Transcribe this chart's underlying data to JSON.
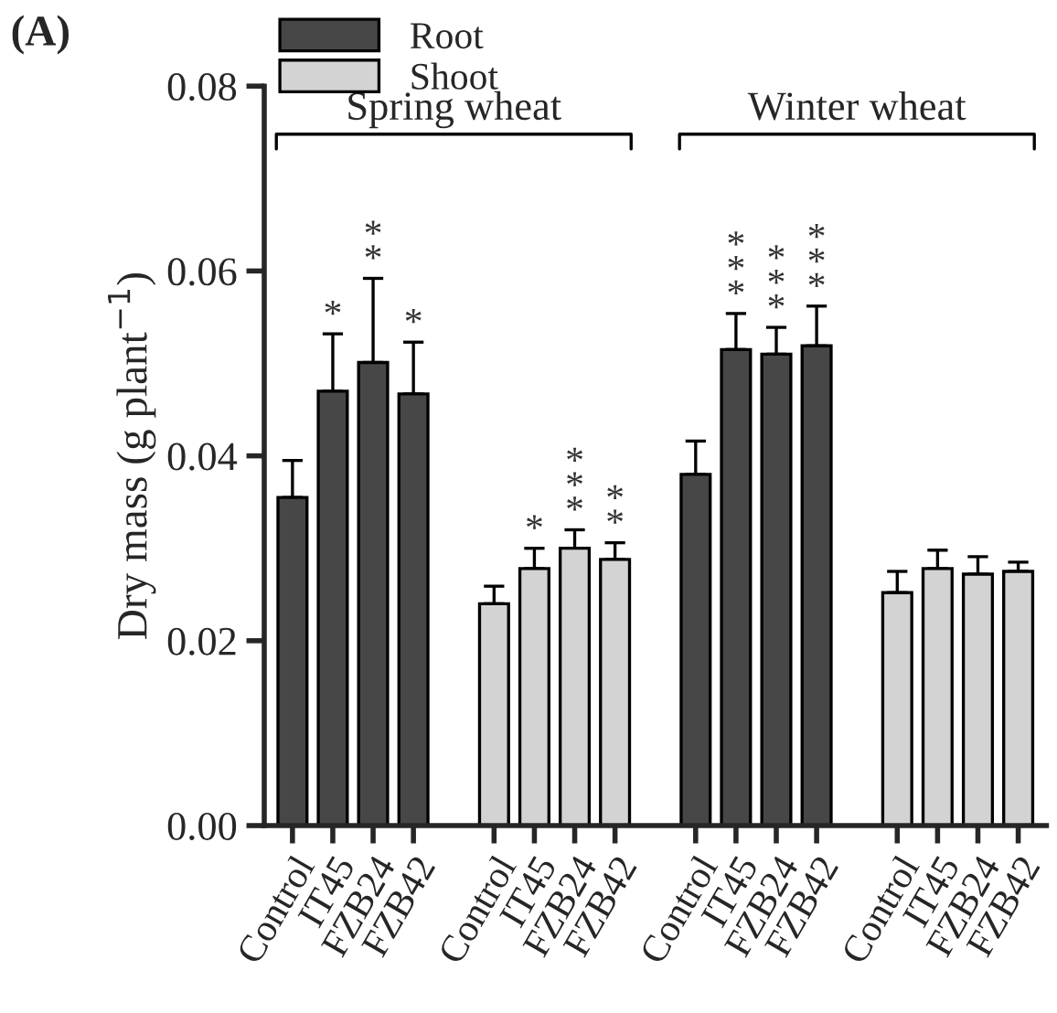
{
  "chart_data": {
    "type": "bar",
    "title": "(A)",
    "ylabel": "Dry mass (g plant$^{−1}$)",
    "categories": [
      "Control",
      "IT45",
      "FZB24",
      "FZB42",
      null,
      "Control",
      "IT45",
      "FZB24",
      "FZB42",
      null,
      "Control",
      "IT45",
      "FZB24",
      "FZB42",
      null,
      "Control",
      "IT45",
      "FZB24",
      "FZB42"
    ],
    "series": [
      {
        "name": "Root",
        "color": "#474747",
        "values": [
          0.0355,
          0.047,
          0.0501,
          0.0467,
          null,
          null,
          null,
          null,
          null,
          null,
          0.038,
          0.0515,
          0.051,
          0.0519,
          null,
          null,
          null,
          null,
          null
        ],
        "errors": [
          0.004,
          0.0062,
          0.0091,
          0.0056,
          null,
          null,
          null,
          null,
          null,
          null,
          0.0036,
          0.0039,
          0.0029,
          0.0043,
          null,
          null,
          null,
          null,
          null
        ],
        "value_labels": [
          null,
          "*",
          "*\n*",
          "*",
          null,
          null,
          null,
          null,
          null,
          null,
          null,
          "*\n*\n*",
          "*\n*\n*",
          "*\n*\n*",
          null,
          null,
          null,
          null,
          null
        ]
      },
      {
        "name": "Shoot",
        "color": "#d3d3d3",
        "values": [
          null,
          null,
          null,
          null,
          null,
          0.024,
          0.0278,
          0.03,
          0.0288,
          null,
          null,
          null,
          null,
          null,
          null,
          0.0252,
          0.0278,
          0.0272,
          0.0275
        ],
        "errors": [
          null,
          null,
          null,
          null,
          null,
          0.0019,
          0.0022,
          0.002,
          0.0018,
          null,
          null,
          null,
          null,
          null,
          null,
          0.0023,
          0.002,
          0.0019,
          0.001
        ],
        "value_labels": [
          null,
          null,
          null,
          null,
          null,
          null,
          "*",
          "*\n*\n*",
          "*\n*",
          null,
          null,
          null,
          null,
          null,
          null,
          null,
          null,
          null,
          null
        ]
      }
    ],
    "annotations": [
      "Spring wheat",
      "Winter wheat"
    ],
    "ylim": [
      0,
      0.08
    ],
    "yticks": [
      {
        "value": 0,
        "label": "0.00"
      },
      {
        "value": 0.02,
        "label": "0.02"
      },
      {
        "value": 0.04,
        "label": "0.04"
      },
      {
        "value": 0.06,
        "label": "0.06"
      },
      {
        "value": 0.08,
        "label": "0.08"
      }
    ],
    "grid": false,
    "legend": "top left"
  }
}
